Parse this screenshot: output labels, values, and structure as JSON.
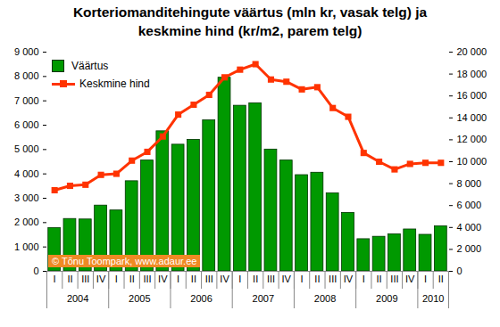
{
  "chart_data": {
    "type": "bar",
    "title": "Korteriomanditehingute väärtus (mln kr, vasak telg) ja keskmine hind (kr/m2, parem telg)",
    "categories": [
      "I",
      "II",
      "III",
      "IV",
      "I",
      "II",
      "III",
      "IV",
      "I",
      "II",
      "III",
      "IV",
      "I",
      "II",
      "III",
      "IV",
      "I",
      "II",
      "III",
      "IV",
      "I",
      "II",
      "III",
      "IV",
      "I",
      "II"
    ],
    "category_groups": [
      "2004",
      "2004",
      "2004",
      "2004",
      "2005",
      "2005",
      "2005",
      "2005",
      "2006",
      "2006",
      "2006",
      "2006",
      "2007",
      "2007",
      "2007",
      "2007",
      "2008",
      "2008",
      "2008",
      "2008",
      "2009",
      "2009",
      "2009",
      "2009",
      "2010",
      "2010"
    ],
    "series": [
      {
        "name": "Väärtus",
        "type": "bar",
        "color": "#009900",
        "values": [
          1780,
          2150,
          2130,
          2700,
          2500,
          3700,
          4550,
          5750,
          5200,
          5400,
          6200,
          7950,
          6800,
          6900,
          5000,
          4550,
          3950,
          4050,
          3200,
          2400,
          1320,
          1420,
          1520,
          1720,
          1500,
          1850
        ]
      },
      {
        "name": "Keskmine hind",
        "type": "line",
        "axis": "y2",
        "color": "#ff3300",
        "marker": "square",
        "values": [
          7400,
          7800,
          7900,
          8800,
          8900,
          10100,
          10900,
          12300,
          14300,
          15200,
          16100,
          17700,
          18400,
          18900,
          17500,
          17300,
          16600,
          16800,
          14900,
          14100,
          10800,
          10000,
          9300,
          9800,
          9900,
          9900
        ]
      }
    ],
    "ylim": [
      0,
      9000
    ],
    "yticks": [
      0,
      {
        "value": 1000,
        "label": "1 000"
      },
      {
        "value": 2000,
        "label": "2 000"
      },
      {
        "value": 3000,
        "label": "3 000"
      },
      {
        "value": 4000,
        "label": "4 000"
      },
      {
        "value": 5000,
        "label": "5 000"
      },
      {
        "value": 6000,
        "label": "6 000"
      },
      {
        "value": 7000,
        "label": "7 000"
      },
      {
        "value": 8000,
        "label": "8 000"
      },
      {
        "value": 9000,
        "label": "9 000"
      }
    ],
    "y2lim": [
      0,
      20000
    ],
    "y2ticks": [
      0,
      {
        "value": 2000,
        "label": "2 000"
      },
      {
        "value": 4000,
        "label": "4 000"
      },
      {
        "value": 6000,
        "label": "6 000"
      },
      {
        "value": 8000,
        "label": "8 000"
      },
      {
        "value": 10000,
        "label": "10 000"
      },
      {
        "value": 12000,
        "label": "12 000"
      },
      {
        "value": 14000,
        "label": "14 000"
      },
      {
        "value": 16000,
        "label": "16 000"
      },
      {
        "value": 18000,
        "label": "18 000"
      },
      {
        "value": 20000,
        "label": "20 000"
      }
    ],
    "legend": "top-left",
    "grid": false,
    "annotations": [
      "© Tõnu Toompark, www.adaur.ee"
    ]
  }
}
